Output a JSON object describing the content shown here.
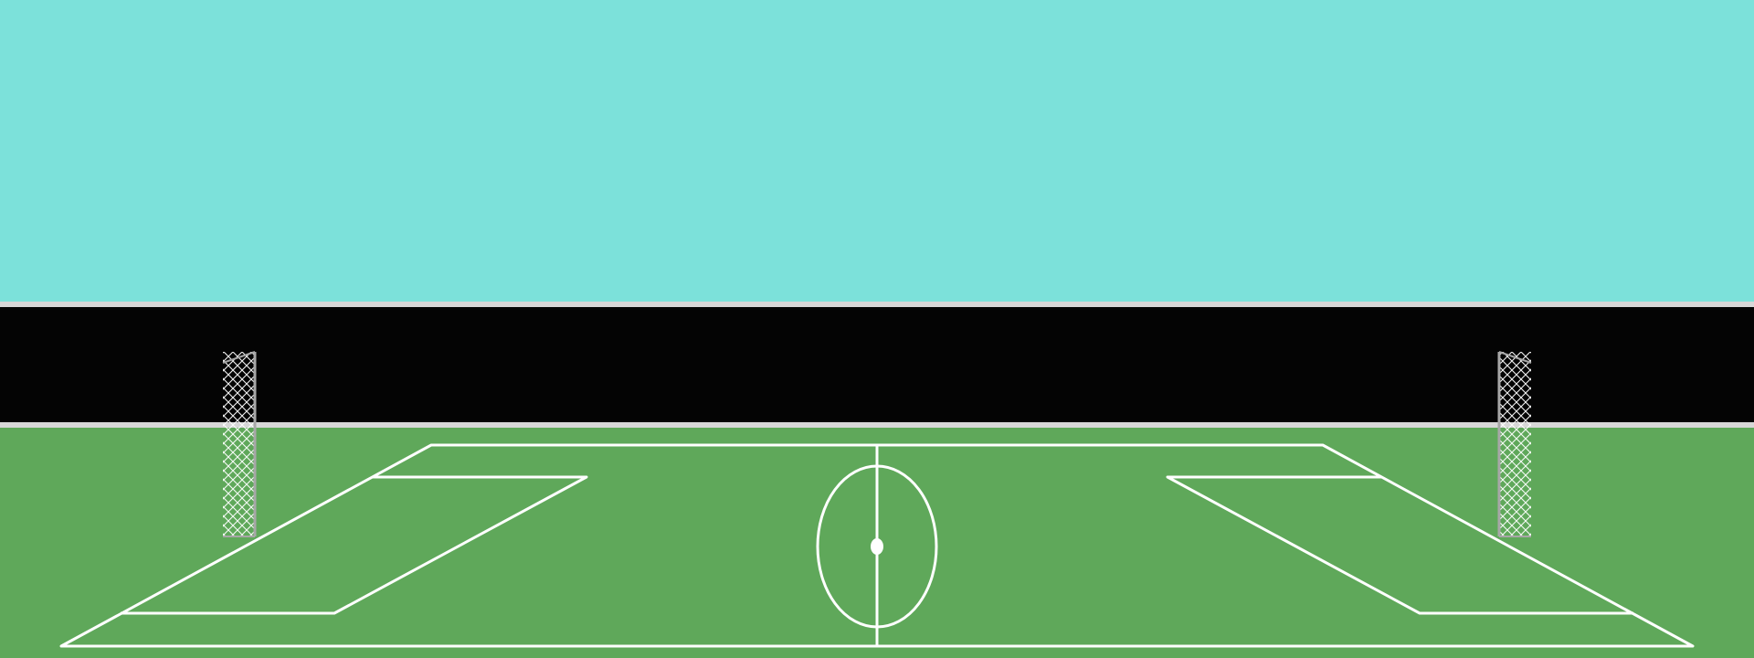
{
  "scene": {
    "type": "soccer-pitch-view",
    "colors": {
      "sky": "#7ce1da",
      "barrier": "#040404",
      "barrier_edge": "#d7d7d7",
      "grass": "#5fa85a",
      "lines": "#ffffff",
      "net": "#ffffff",
      "goal_post": "#a7a7a7"
    },
    "icons": [
      "left-goal-net-icon",
      "right-goal-net-icon",
      "center-circle-icon"
    ]
  }
}
